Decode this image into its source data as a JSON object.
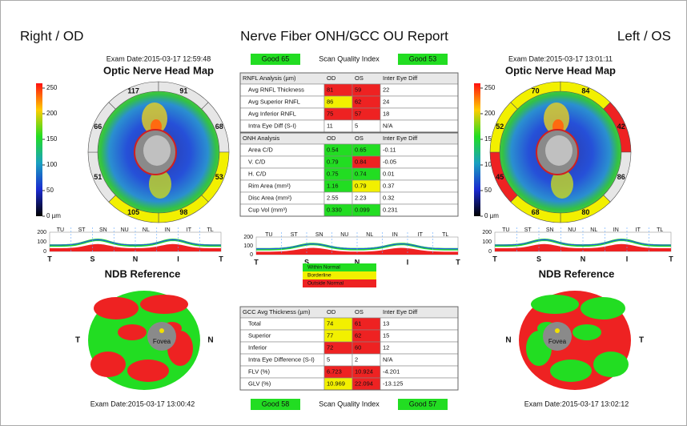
{
  "header": {
    "left": "Right / OD",
    "title": "Nerve Fiber ONH/GCC OU Report",
    "right": "Left / OS"
  },
  "quality": {
    "top": [
      "Good  65",
      "Scan Quality Index",
      "Good  53"
    ],
    "bottom": [
      "Good  58",
      "Scan Quality Index",
      "Good  57"
    ]
  },
  "colorbar": [
    "250",
    "200",
    "150",
    "100",
    "50",
    "0 µm"
  ],
  "od": {
    "exam_date_top": "Exam Date:2015-03-17 12:59:48",
    "map_title": "Optic Nerve Head Map",
    "sectors": [
      "117",
      "91",
      "68",
      "53",
      "98",
      "105",
      "51",
      "66"
    ],
    "sector_fills": [
      "#e6e6e6",
      "#e6e6e6",
      "#e6e6e6",
      "#f2f000",
      "#f2f000",
      "#f2f000",
      "#e6e6e6",
      "#e6e6e6"
    ],
    "ndb_title": "NDB Reference",
    "ndb_labels": [
      "T",
      "N"
    ],
    "fovea": "Fovea",
    "exam_date_bottom": "Exam Date:2015-03-17 13:00:42"
  },
  "os": {
    "exam_date_top": "Exam Date:2015-03-17 13:01:11",
    "map_title": "Optic Nerve Head Map",
    "sectors": [
      "70",
      "84",
      "42",
      "86",
      "80",
      "68",
      "45",
      "52"
    ],
    "sector_fills": [
      "#f2f000",
      "#f2f000",
      "#ee2222",
      "#e6e6e6",
      "#f2f000",
      "#f2f000",
      "#ee2222",
      "#f2f000"
    ],
    "ndb_title": "NDB Reference",
    "ndb_labels": [
      "N",
      "T"
    ],
    "fovea": "Fovea",
    "exam_date_bottom": "Exam Date:2015-03-17 13:02:12"
  },
  "tsnit": {
    "sectors": [
      "TU",
      "ST",
      "SN",
      "NU",
      "NL",
      "IN",
      "IT",
      "TL"
    ],
    "axis": [
      "200",
      "100",
      "0"
    ],
    "bottom": [
      "T",
      "S",
      "N",
      "I",
      "T"
    ]
  },
  "legend": {
    "labels": [
      "Within Normal",
      "Borderline",
      "Outside Normal"
    ],
    "colors": [
      "#22dd22",
      "#f2f000",
      "#ee2222"
    ]
  },
  "tables": [
    {
      "header": [
        "RNFL Analysis (µm)",
        "OD",
        "OS",
        "Inter Eye Diff"
      ],
      "rows": [
        [
          "Avg RNFL Thickness",
          "81",
          "59",
          "22"
        ],
        [
          "Avg Superior RNFL",
          "86",
          "62",
          "24"
        ],
        [
          "Avg Inferior RNFL",
          "75",
          "57",
          "18"
        ],
        [
          "Intra Eye Diff (S-I)",
          "11",
          "5",
          "N/A"
        ]
      ],
      "fills": [
        [
          null,
          "#ee2222",
          "#ee2222",
          null
        ],
        [
          null,
          "#f2f000",
          "#ee2222",
          null
        ],
        [
          null,
          "#ee2222",
          "#ee2222",
          null
        ],
        [
          null,
          null,
          null,
          null
        ]
      ]
    },
    {
      "header": [
        "ONH Analysis",
        "OD",
        "OS",
        "Inter Eye Diff"
      ],
      "rows": [
        [
          "Area C/D",
          "0.54",
          "0.65",
          "-0.11"
        ],
        [
          "V. C/D",
          "0.79",
          "0.84",
          "-0.05"
        ],
        [
          "H. C/D",
          "0.75",
          "0.74",
          "0.01"
        ],
        [
          "Rim Area (mm²)",
          "1.16",
          "0.79",
          "0.37"
        ],
        [
          "Disc Area (mm²)",
          "2.55",
          "2.23",
          "0.32"
        ],
        [
          "Cup Vol (mm³)",
          "0.330",
          "0.099",
          "0.231"
        ]
      ],
      "fills": [
        [
          null,
          "#22dd22",
          "#22dd22",
          null
        ],
        [
          null,
          "#22dd22",
          "#ee2222",
          null
        ],
        [
          null,
          "#22dd22",
          "#22dd22",
          null
        ],
        [
          null,
          "#22dd22",
          "#f2f000",
          null
        ],
        [
          null,
          null,
          null,
          null
        ],
        [
          null,
          "#22dd22",
          "#22dd22",
          null
        ]
      ]
    },
    {
      "header": [
        "GCC Avg Thickness (µm)",
        "OD",
        "OS",
        "Inter Eye Diff"
      ],
      "rows": [
        [
          "Total",
          "74",
          "61",
          "13"
        ],
        [
          "Superior",
          "77",
          "62",
          "15"
        ],
        [
          "Inferior",
          "72",
          "60",
          "12"
        ],
        [
          "Intra Eye Difference (S-I)",
          "5",
          "2",
          "N/A"
        ],
        [
          "FLV (%)",
          "6.723",
          "10.924",
          "-4.201"
        ],
        [
          "GLV (%)",
          "10.969",
          "22.094",
          "-13.125"
        ]
      ],
      "fills": [
        [
          null,
          "#f2f000",
          "#ee2222",
          null
        ],
        [
          null,
          "#f2f000",
          "#ee2222",
          null
        ],
        [
          null,
          "#ee2222",
          "#ee2222",
          null
        ],
        [
          null,
          null,
          null,
          null
        ],
        [
          null,
          "#ee2222",
          "#ee2222",
          null
        ],
        [
          null,
          "#f2f000",
          "#ee2222",
          null
        ]
      ]
    }
  ]
}
